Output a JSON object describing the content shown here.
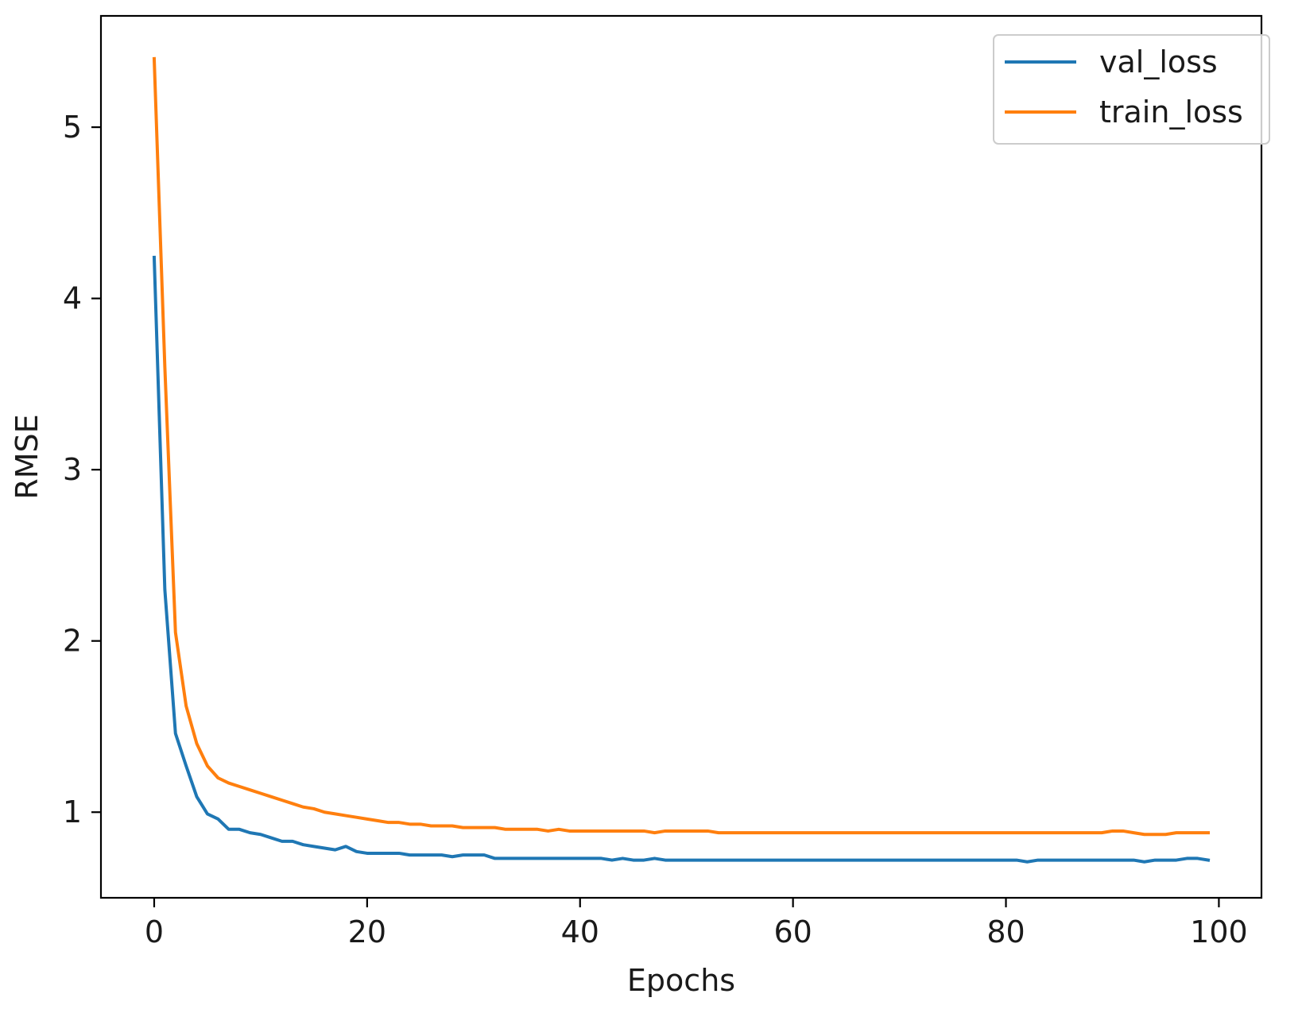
{
  "chart_data": {
    "type": "line",
    "xlabel": "Epochs",
    "ylabel": "RMSE",
    "xlim": [
      -5,
      104
    ],
    "ylim": [
      0.5,
      5.65
    ],
    "xticks": [
      0,
      20,
      40,
      60,
      80,
      100
    ],
    "yticks": [
      1,
      2,
      3,
      4,
      5
    ],
    "xtick_labels": [
      "0",
      "20",
      "40",
      "60",
      "80",
      "100"
    ],
    "ytick_labels": [
      "1",
      "2",
      "3",
      "4",
      "5"
    ],
    "grid": false,
    "legend_position": "top-right",
    "x": [
      0,
      1,
      2,
      3,
      4,
      5,
      6,
      7,
      8,
      9,
      10,
      11,
      12,
      13,
      14,
      15,
      16,
      17,
      18,
      19,
      20,
      21,
      22,
      23,
      24,
      25,
      26,
      27,
      28,
      29,
      30,
      31,
      32,
      33,
      34,
      35,
      36,
      37,
      38,
      39,
      40,
      41,
      42,
      43,
      44,
      45,
      46,
      47,
      48,
      49,
      50,
      51,
      52,
      53,
      54,
      55,
      56,
      57,
      58,
      59,
      60,
      61,
      62,
      63,
      64,
      65,
      66,
      67,
      68,
      69,
      70,
      71,
      72,
      73,
      74,
      75,
      76,
      77,
      78,
      79,
      80,
      81,
      82,
      83,
      84,
      85,
      86,
      87,
      88,
      89,
      90,
      91,
      92,
      93,
      94,
      95,
      96,
      97,
      98,
      99
    ],
    "series": [
      {
        "name": "val_loss",
        "color": "#1f77b4",
        "values": [
          4.24,
          2.3,
          1.46,
          1.27,
          1.09,
          0.99,
          0.96,
          0.9,
          0.9,
          0.88,
          0.87,
          0.85,
          0.83,
          0.83,
          0.81,
          0.8,
          0.79,
          0.78,
          0.8,
          0.77,
          0.76,
          0.76,
          0.76,
          0.76,
          0.75,
          0.75,
          0.75,
          0.75,
          0.74,
          0.75,
          0.75,
          0.75,
          0.73,
          0.73,
          0.73,
          0.73,
          0.73,
          0.73,
          0.73,
          0.73,
          0.73,
          0.73,
          0.73,
          0.72,
          0.73,
          0.72,
          0.72,
          0.73,
          0.72,
          0.72,
          0.72,
          0.72,
          0.72,
          0.72,
          0.72,
          0.72,
          0.72,
          0.72,
          0.72,
          0.72,
          0.72,
          0.72,
          0.72,
          0.72,
          0.72,
          0.72,
          0.72,
          0.72,
          0.72,
          0.72,
          0.72,
          0.72,
          0.72,
          0.72,
          0.72,
          0.72,
          0.72,
          0.72,
          0.72,
          0.72,
          0.72,
          0.72,
          0.71,
          0.72,
          0.72,
          0.72,
          0.72,
          0.72,
          0.72,
          0.72,
          0.72,
          0.72,
          0.72,
          0.71,
          0.72,
          0.72,
          0.72,
          0.73,
          0.73,
          0.72
        ]
      },
      {
        "name": "train_loss",
        "color": "#ff7f0e",
        "values": [
          5.4,
          3.6,
          2.05,
          1.62,
          1.4,
          1.27,
          1.2,
          1.17,
          1.15,
          1.13,
          1.11,
          1.09,
          1.07,
          1.05,
          1.03,
          1.02,
          1.0,
          0.99,
          0.98,
          0.97,
          0.96,
          0.95,
          0.94,
          0.94,
          0.93,
          0.93,
          0.92,
          0.92,
          0.92,
          0.91,
          0.91,
          0.91,
          0.91,
          0.9,
          0.9,
          0.9,
          0.9,
          0.89,
          0.9,
          0.89,
          0.89,
          0.89,
          0.89,
          0.89,
          0.89,
          0.89,
          0.89,
          0.88,
          0.89,
          0.89,
          0.89,
          0.89,
          0.89,
          0.88,
          0.88,
          0.88,
          0.88,
          0.88,
          0.88,
          0.88,
          0.88,
          0.88,
          0.88,
          0.88,
          0.88,
          0.88,
          0.88,
          0.88,
          0.88,
          0.88,
          0.88,
          0.88,
          0.88,
          0.88,
          0.88,
          0.88,
          0.88,
          0.88,
          0.88,
          0.88,
          0.88,
          0.88,
          0.88,
          0.88,
          0.88,
          0.88,
          0.88,
          0.88,
          0.88,
          0.88,
          0.89,
          0.89,
          0.88,
          0.87,
          0.87,
          0.87,
          0.88,
          0.88,
          0.88,
          0.88
        ]
      }
    ]
  }
}
